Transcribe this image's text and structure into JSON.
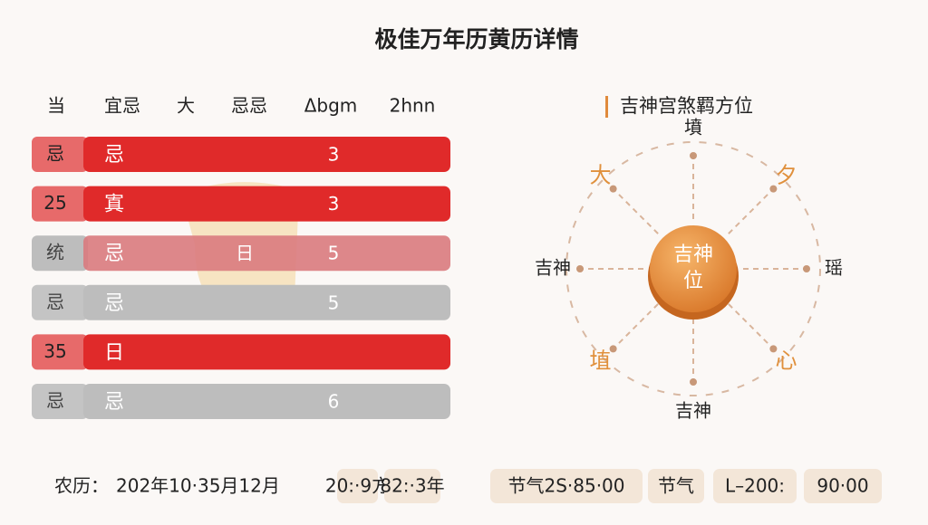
{
  "header": {
    "title": "极佳万年历黄历详情"
  },
  "table": {
    "columns": [
      "当",
      "宜忌",
      "大",
      "忌忌",
      "Δbgm",
      "2hnn"
    ],
    "rows": [
      {
        "tag": "忌",
        "char": "忌",
        "value": "3",
        "style": "red"
      },
      {
        "tag": "25",
        "char": "寘",
        "value": "3",
        "style": "red"
      },
      {
        "tag": "统",
        "char": "忌",
        "mid": "日",
        "value": "5",
        "style": "faded"
      },
      {
        "tag": "忌",
        "char": "忌",
        "value": "5",
        "style": "gray"
      },
      {
        "tag": "35",
        "char": "日",
        "style": "red"
      },
      {
        "tag": "忌",
        "char": "忌",
        "value": "6",
        "style": "gray"
      }
    ]
  },
  "compass": {
    "title": "吉神宫煞羁方位",
    "center": [
      "吉神",
      "位"
    ],
    "directions": {
      "top": "墳",
      "top_right": "夕",
      "right": "瑶",
      "bottom_right": "心",
      "bottom": "吉神",
      "bottom_left": "埴",
      "left": "吉神",
      "top_left": "大"
    }
  },
  "footer": {
    "label": "农历：",
    "date": "202年10·35月12月",
    "pills": [
      "20:·9方",
      "82:·3年",
      "节气2S·85·00",
      "节气",
      "L–200:",
      "90·00"
    ]
  }
}
